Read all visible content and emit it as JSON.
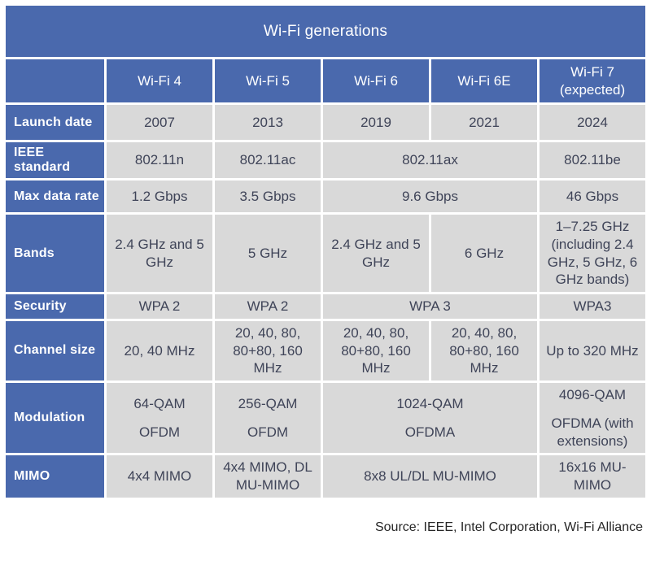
{
  "chart_data": {
    "type": "table",
    "title": "Wi-Fi generations",
    "source": "Source: IEEE, Intel Corporation, Wi-Fi Alliance",
    "column_headers": [
      {
        "label": "Wi-Fi 4"
      },
      {
        "label": "Wi-Fi 5"
      },
      {
        "label": "Wi-Fi 6"
      },
      {
        "label": "Wi-Fi 6E"
      },
      {
        "label": "Wi-Fi 7",
        "sublabel": "(expected)"
      }
    ],
    "rows": [
      {
        "label": "Launch date",
        "cells": [
          {
            "text": "2007"
          },
          {
            "text": "2013"
          },
          {
            "text": "2019"
          },
          {
            "text": "2021"
          },
          {
            "text": "2024"
          }
        ]
      },
      {
        "label": "IEEE standard",
        "cells": [
          {
            "text": "802.11n"
          },
          {
            "text": "802.11ac"
          },
          {
            "text": "802.11ax",
            "span": 2
          },
          {
            "text": "802.11be"
          }
        ]
      },
      {
        "label": "Max data rate",
        "cells": [
          {
            "text": "1.2 Gbps"
          },
          {
            "text": "3.5 Gbps"
          },
          {
            "text": "9.6 Gbps",
            "span": 2
          },
          {
            "text": "46 Gbps"
          }
        ]
      },
      {
        "label": "Bands",
        "cells": [
          {
            "text": "2.4 GHz and 5 GHz"
          },
          {
            "text": "5 GHz"
          },
          {
            "text": "2.4 GHz and 5 GHz"
          },
          {
            "text": "6 GHz"
          },
          {
            "text": "1–7.25 GHz (including 2.4 GHz, 5 GHz, 6 GHz bands)"
          }
        ]
      },
      {
        "label": "Security",
        "cells": [
          {
            "text": "WPA 2"
          },
          {
            "text": "WPA 2"
          },
          {
            "text": "WPA 3",
            "span": 2
          },
          {
            "text": "WPA3"
          }
        ]
      },
      {
        "label": "Channel size",
        "cells": [
          {
            "text": "20, 40 MHz"
          },
          {
            "text": "20, 40, 80, 80+80, 160 MHz"
          },
          {
            "text": "20, 40, 80, 80+80, 160 MHz"
          },
          {
            "text": "20, 40, 80, 80+80, 160 MHz"
          },
          {
            "text": "Up to 320 MHz"
          }
        ]
      },
      {
        "label": "Modulation",
        "cells": [
          {
            "lines": [
              "64-QAM",
              "OFDM"
            ]
          },
          {
            "lines": [
              "256-QAM",
              "OFDM"
            ]
          },
          {
            "lines": [
              "1024-QAM",
              "OFDMA"
            ],
            "span": 2
          },
          {
            "lines": [
              "4096-QAM",
              "OFDMA (with extensions)"
            ]
          }
        ]
      },
      {
        "label": "MIMO",
        "cells": [
          {
            "text": "4x4 MIMO"
          },
          {
            "text": "4x4 MIMO, DL MU-MIMO"
          },
          {
            "text": "8x8 UL/DL MU-MIMO",
            "span": 2
          },
          {
            "text": "16x16 MU-MIMO"
          }
        ]
      }
    ]
  },
  "colors": {
    "header_blue": "#4a69ad",
    "cell_gray": "#d9d9d9",
    "cell_text": "#3f4458",
    "header_text": "#ffffff",
    "source_text": "#262626",
    "background": "#ffffff"
  }
}
